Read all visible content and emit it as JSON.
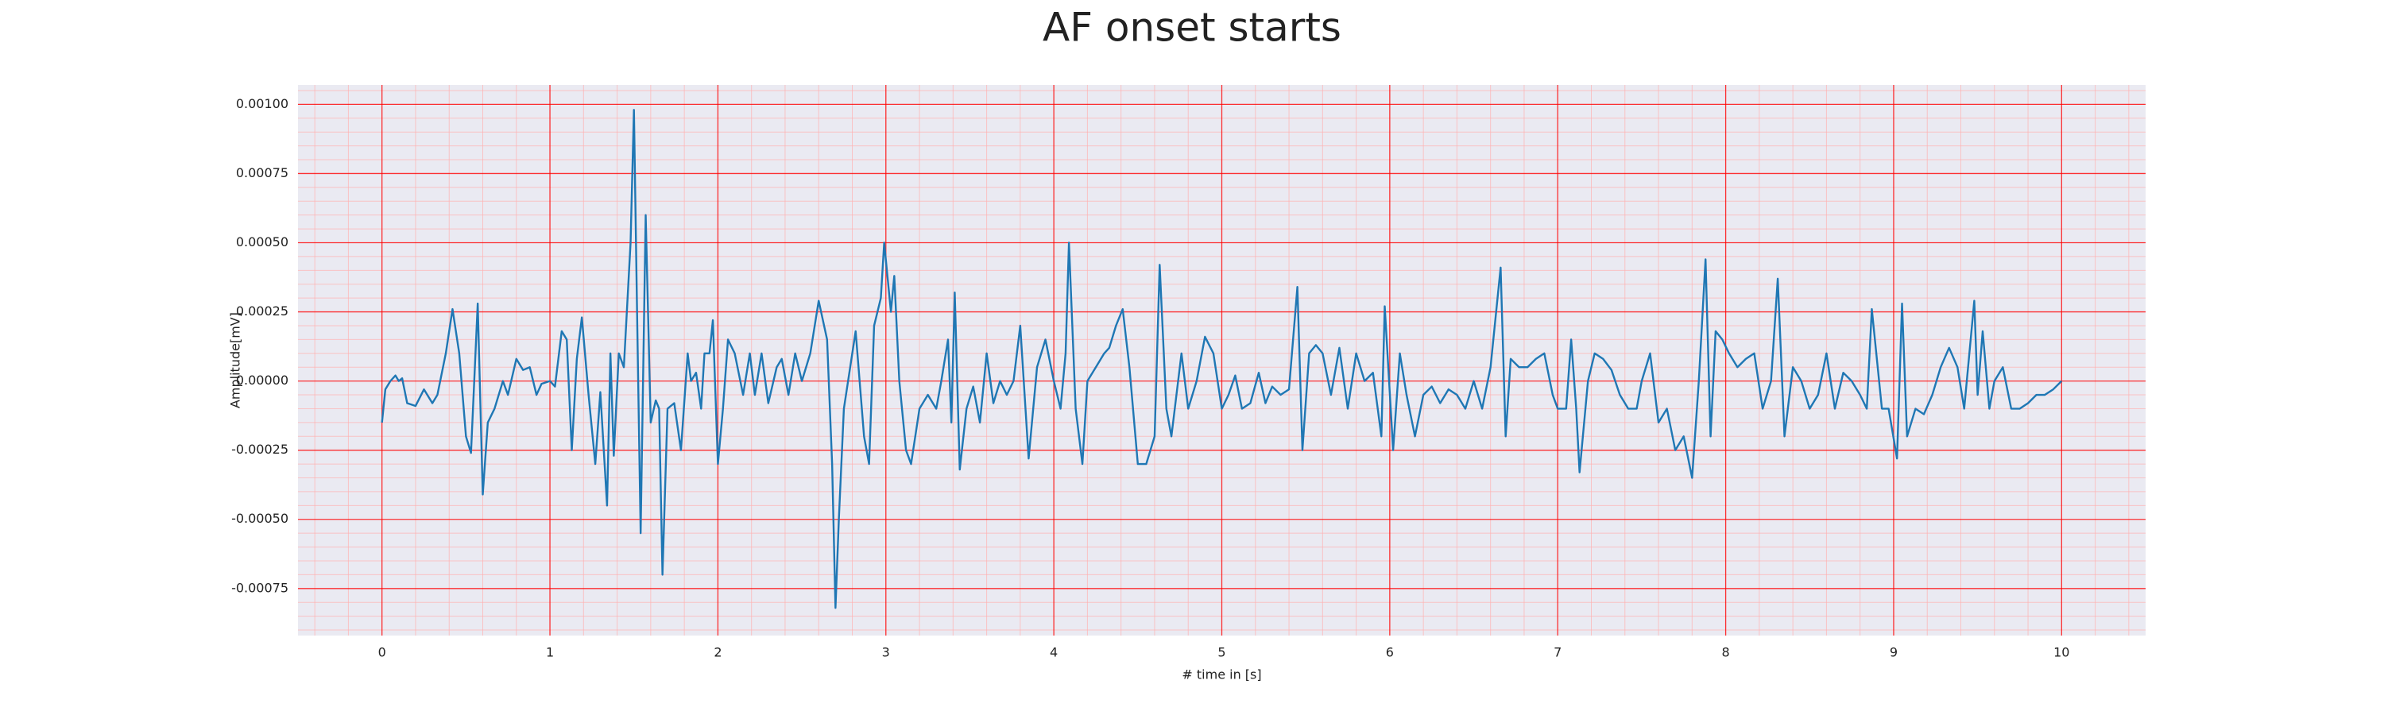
{
  "chart_data": {
    "type": "line",
    "title": "AF onset starts",
    "x_label": "# time in [s]",
    "y_label": "Amplitude[mV]",
    "xlim": [
      -0.5,
      10.5
    ],
    "ylim": [
      -0.00092,
      0.00107
    ],
    "xticks": [
      0,
      1,
      2,
      3,
      4,
      5,
      6,
      7,
      8,
      9,
      10
    ],
    "yticks": [
      {
        "value": -0.00075,
        "label": "-0.00075"
      },
      {
        "value": -0.0005,
        "label": "-0.00050"
      },
      {
        "value": -0.00025,
        "label": "-0.00025"
      },
      {
        "value": 0,
        "label": "0.00000"
      },
      {
        "value": 0.00025,
        "label": "0.00025"
      },
      {
        "value": 0.0005,
        "label": "0.00050"
      },
      {
        "value": 0.00075,
        "label": "0.00075"
      },
      {
        "value": 0.001,
        "label": "0.00100"
      }
    ],
    "grid": true,
    "minor_grid": true,
    "background": "#eaeaf2",
    "grid_color": "#ff0000",
    "minor_grid_color": "#ffb0b0",
    "x": [
      0,
      0.02,
      0.05,
      0.08,
      0.1,
      0.12,
      0.15,
      0.2,
      0.25,
      0.3,
      0.33,
      0.38,
      0.42,
      0.46,
      0.5,
      0.53,
      0.57,
      0.6,
      0.63,
      0.67,
      0.72,
      0.75,
      0.8,
      0.84,
      0.88,
      0.92,
      0.95,
      1,
      1.03,
      1.07,
      1.1,
      1.13,
      1.16,
      1.19,
      1.23,
      1.27,
      1.3,
      1.34,
      1.36,
      1.38,
      1.41,
      1.44,
      1.48,
      1.5,
      1.52,
      1.54,
      1.57,
      1.6,
      1.63,
      1.65,
      1.67,
      1.7,
      1.74,
      1.78,
      1.82,
      1.84,
      1.87,
      1.9,
      1.92,
      1.95,
      1.97,
      2,
      2.03,
      2.06,
      2.1,
      2.15,
      2.19,
      2.22,
      2.26,
      2.3,
      2.35,
      2.38,
      2.42,
      2.46,
      2.5,
      2.55,
      2.6,
      2.65,
      2.68,
      2.7,
      2.72,
      2.75,
      2.78,
      2.82,
      2.87,
      2.9,
      2.93,
      2.97,
      2.99,
      3.03,
      3.05,
      3.08,
      3.12,
      3.15,
      3.2,
      3.25,
      3.3,
      3.33,
      3.37,
      3.39,
      3.41,
      3.44,
      3.48,
      3.52,
      3.56,
      3.6,
      3.64,
      3.68,
      3.72,
      3.76,
      3.8,
      3.85,
      3.9,
      3.95,
      4,
      4.04,
      4.07,
      4.09,
      4.13,
      4.17,
      4.2,
      4.25,
      4.3,
      4.33,
      4.37,
      4.41,
      4.45,
      4.5,
      4.55,
      4.6,
      4.63,
      4.67,
      4.7,
      4.76,
      4.8,
      4.85,
      4.9,
      4.95,
      5,
      5.04,
      5.08,
      5.12,
      5.17,
      5.22,
      5.26,
      5.3,
      5.35,
      5.4,
      5.45,
      5.48,
      5.52,
      5.56,
      5.6,
      5.65,
      5.7,
      5.75,
      5.8,
      5.85,
      5.9,
      5.95,
      5.97,
      6.02,
      6.06,
      6.1,
      6.15,
      6.2,
      6.25,
      6.3,
      6.35,
      6.4,
      6.45,
      6.5,
      6.55,
      6.6,
      6.66,
      6.69,
      6.72,
      6.77,
      6.82,
      6.87,
      6.92,
      6.97,
      7,
      7.05,
      7.08,
      7.11,
      7.13,
      7.18,
      7.22,
      7.27,
      7.32,
      7.37,
      7.42,
      7.47,
      7.5,
      7.55,
      7.6,
      7.65,
      7.7,
      7.75,
      7.8,
      7.84,
      7.88,
      7.91,
      7.94,
      7.98,
      8.02,
      8.07,
      8.12,
      8.17,
      8.22,
      8.27,
      8.31,
      8.35,
      8.4,
      8.45,
      8.5,
      8.55,
      8.6,
      8.65,
      8.7,
      8.75,
      8.8,
      8.84,
      8.87,
      8.93,
      8.97,
      9.02,
      9.05,
      9.08,
      9.13,
      9.18,
      9.23,
      9.28,
      9.33,
      9.38,
      9.42,
      9.48,
      9.5,
      9.53,
      9.57,
      9.6,
      9.65,
      9.7,
      9.75,
      9.8,
      9.85,
      9.9,
      9.95,
      10
    ],
    "series": [
      {
        "color": "#1f77b4",
        "values": [
          -0.00015,
          -3e-05,
          0,
          2e-05,
          0,
          1e-05,
          -8e-05,
          -9e-05,
          -3e-05,
          -8e-05,
          -5e-05,
          0.0001,
          0.00026,
          0.0001,
          -0.0002,
          -0.00026,
          0.00028,
          -0.00041,
          -0.00015,
          -0.0001,
          0,
          -5e-05,
          8e-05,
          4e-05,
          5e-05,
          -5e-05,
          -1e-05,
          0,
          -2e-05,
          0.00018,
          0.00015,
          -0.00025,
          8e-05,
          0.00023,
          -5e-05,
          -0.0003,
          -4e-05,
          -0.00045,
          0.0001,
          -0.00027,
          0.0001,
          5e-05,
          0.0005,
          0.00098,
          0.0002,
          -0.00055,
          0.0006,
          -0.00015,
          -7e-05,
          -0.0001,
          -0.0007,
          -0.0001,
          -8e-05,
          -0.00025,
          0.0001,
          0,
          3e-05,
          -0.0001,
          0.0001,
          0.0001,
          0.00022,
          -0.0003,
          -0.0001,
          0.00015,
          0.0001,
          -5e-05,
          0.0001,
          -5e-05,
          0.0001,
          -8e-05,
          5e-05,
          8e-05,
          -5e-05,
          0.0001,
          0,
          0.0001,
          0.00029,
          0.00015,
          -0.0003,
          -0.00082,
          -0.0005,
          -0.0001,
          2e-05,
          0.00018,
          -0.0002,
          -0.0003,
          0.0002,
          0.0003,
          0.0005,
          0.00025,
          0.00038,
          0,
          -0.00025,
          -0.0003,
          -0.0001,
          -5e-05,
          -0.0001,
          0,
          0.00015,
          -0.00015,
          0.00032,
          -0.00032,
          -0.0001,
          -2e-05,
          -0.00015,
          0.0001,
          -8e-05,
          0,
          -5e-05,
          0,
          0.0002,
          -0.00028,
          5e-05,
          0.00015,
          0,
          -0.0001,
          0.0001,
          0.0005,
          -0.0001,
          -0.0003,
          0,
          5e-05,
          0.0001,
          0.00012,
          0.0002,
          0.00026,
          5e-05,
          -0.0003,
          -0.0003,
          -0.0002,
          0.00042,
          -0.0001,
          -0.0002,
          0.0001,
          -0.0001,
          0,
          0.00016,
          0.0001,
          -0.0001,
          -5e-05,
          2e-05,
          -0.0001,
          -8e-05,
          3e-05,
          -8e-05,
          -2e-05,
          -5e-05,
          -3e-05,
          0.00034,
          -0.00025,
          0.0001,
          0.00013,
          0.0001,
          -5e-05,
          0.00012,
          -0.0001,
          0.0001,
          0,
          3e-05,
          -0.0002,
          0.00027,
          -0.00025,
          0.0001,
          -5e-05,
          -0.0002,
          -5e-05,
          -2e-05,
          -8e-05,
          -3e-05,
          -5e-05,
          -0.0001,
          0,
          -0.0001,
          5e-05,
          0.00041,
          -0.0002,
          8e-05,
          5e-05,
          5e-05,
          8e-05,
          0.0001,
          -5e-05,
          -0.0001,
          -0.0001,
          0.00015,
          -0.0001,
          -0.00033,
          0,
          0.0001,
          8e-05,
          4e-05,
          -5e-05,
          -0.0001,
          -0.0001,
          0,
          0.0001,
          -0.00015,
          -0.0001,
          -0.00025,
          -0.0002,
          -0.00035,
          0,
          0.00044,
          -0.0002,
          0.00018,
          0.00015,
          0.0001,
          5e-05,
          8e-05,
          0.0001,
          -0.0001,
          0,
          0.00037,
          -0.0002,
          5e-05,
          0,
          -0.0001,
          -5e-05,
          0.0001,
          -0.0001,
          3e-05,
          0,
          -5e-05,
          -0.0001,
          0.00026,
          -0.0001,
          -0.0001,
          -0.00028,
          0.00028,
          -0.0002,
          -0.0001,
          -0.00012,
          -5e-05,
          5e-05,
          0.00012,
          5e-05,
          -0.0001,
          0.00029,
          -5e-05,
          0.00018,
          -0.0001,
          0,
          5e-05,
          -0.0001,
          -0.0001,
          -8e-05,
          -5e-05,
          -5e-05,
          -3e-05,
          0
        ]
      }
    ]
  }
}
